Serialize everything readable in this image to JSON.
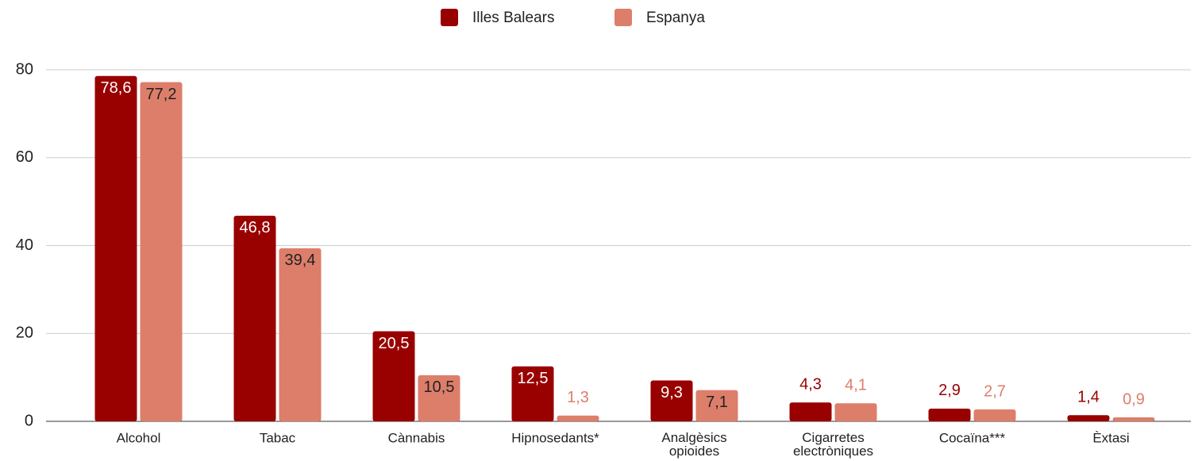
{
  "chart_data": {
    "type": "bar",
    "categories": [
      "Alcohol",
      "Tabac",
      "Cànnabis",
      "Hipnosedants*",
      "Analgèsics opioides",
      "Cigarretes electròniques",
      "Cocaïna***",
      "Èxtasi"
    ],
    "series": [
      {
        "name": "Illes Balears",
        "color": "#990000",
        "values": [
          78.6,
          46.8,
          20.5,
          12.5,
          9.3,
          4.3,
          2.9,
          1.4
        ],
        "value_labels": [
          "78,6",
          "46,8",
          "20,5",
          "12,5",
          "9,3",
          "4,3",
          "2,9",
          "1,4"
        ]
      },
      {
        "name": "Espanya",
        "color": "#dd7e6b",
        "values": [
          77.2,
          39.4,
          10.5,
          1.3,
          7.1,
          4.1,
          2.7,
          0.9
        ],
        "value_labels": [
          "77,2",
          "39,4",
          "10,5",
          "1,3",
          "7,1",
          "4,1",
          "2,7",
          "0,9"
        ]
      }
    ],
    "ylim": [
      0,
      80
    ],
    "yticks": [
      0,
      20,
      40,
      60,
      80
    ],
    "grid": true,
    "legend": "top"
  }
}
